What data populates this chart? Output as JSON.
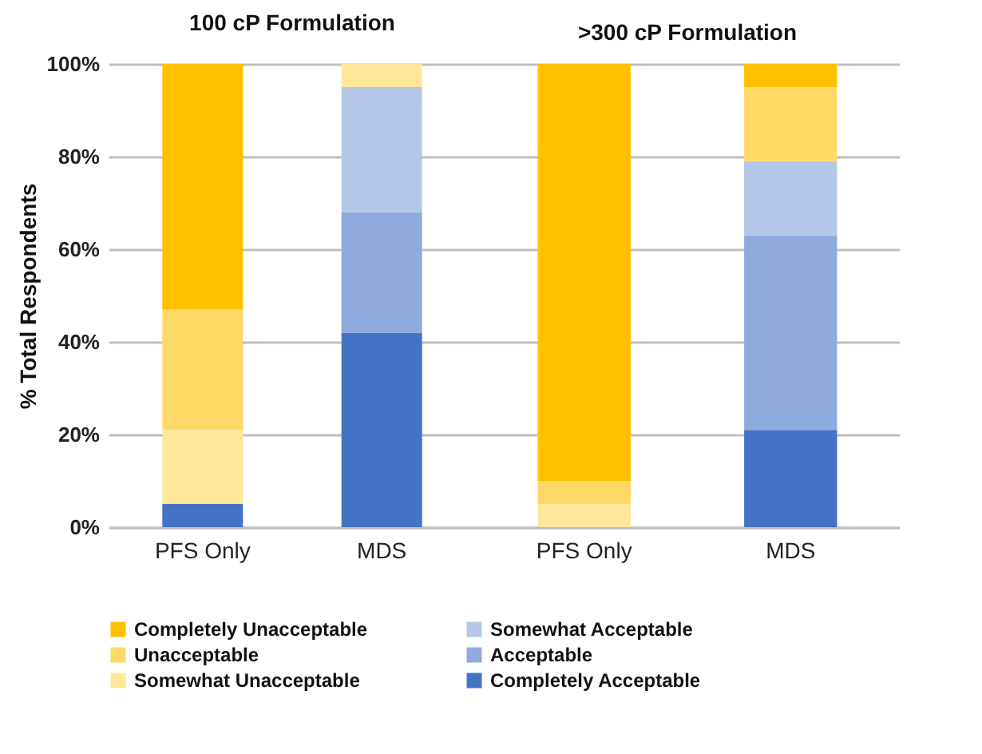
{
  "chart_data": [
    {
      "type": "bar",
      "title": "100 cP Formulation",
      "ylabel": "% Total Respondents",
      "categories": [
        "PFS Only",
        "MDS"
      ],
      "stacked": true,
      "series": [
        {
          "name": "Completely Acceptable",
          "color": "#4472c4",
          "values": [
            5,
            42
          ]
        },
        {
          "name": "Acceptable",
          "color": "#8faadc",
          "values": [
            0,
            26
          ]
        },
        {
          "name": "Somewhat Acceptable",
          "color": "#b4c7e7",
          "values": [
            0,
            27
          ]
        },
        {
          "name": "Somewhat Unacceptable",
          "color": "#ffe699",
          "values": [
            16,
            5
          ]
        },
        {
          "name": "Unacceptable",
          "color": "#ffd966",
          "values": [
            26,
            0
          ]
        },
        {
          "name": "Completely Unacceptable",
          "color": "#ffc000",
          "values": [
            53,
            0
          ]
        }
      ],
      "ylim": [
        0,
        100
      ],
      "yticks": [
        {
          "value": 0,
          "label": "0%"
        },
        {
          "value": 20,
          "label": "20%"
        },
        {
          "value": 40,
          "label": "40%"
        },
        {
          "value": 60,
          "label": "60%"
        },
        {
          "value": 80,
          "label": "80%"
        },
        {
          "value": 100,
          "label": "100%"
        }
      ],
      "grid": "y",
      "legend": "bottom"
    },
    {
      "type": "bar",
      "title": ">300 cP Formulation",
      "categories": [
        "PFS Only",
        "MDS"
      ],
      "stacked": true,
      "series": [
        {
          "color": "#4472c4",
          "values": [
            0,
            21
          ]
        },
        {
          "color": "#8faadc",
          "values": [
            0,
            42
          ]
        },
        {
          "color": "#b4c7e7",
          "values": [
            0,
            16
          ]
        },
        {
          "color": "#ffe699",
          "values": [
            5,
            0
          ]
        },
        {
          "color": "#ffd966",
          "values": [
            5,
            16
          ]
        },
        {
          "color": "#ffc000",
          "values": [
            90,
            5
          ]
        }
      ],
      "ylim": [
        0,
        100
      ],
      "yticks": [
        {
          "value": 0,
          "label": null
        },
        {
          "value": 20,
          "label": null
        },
        {
          "value": 40,
          "label": null
        },
        {
          "value": 60,
          "label": null
        },
        {
          "value": 80,
          "label": null
        },
        {
          "value": 100,
          "label": null
        }
      ],
      "grid": "y",
      "tick_labels": "x"
    }
  ]
}
